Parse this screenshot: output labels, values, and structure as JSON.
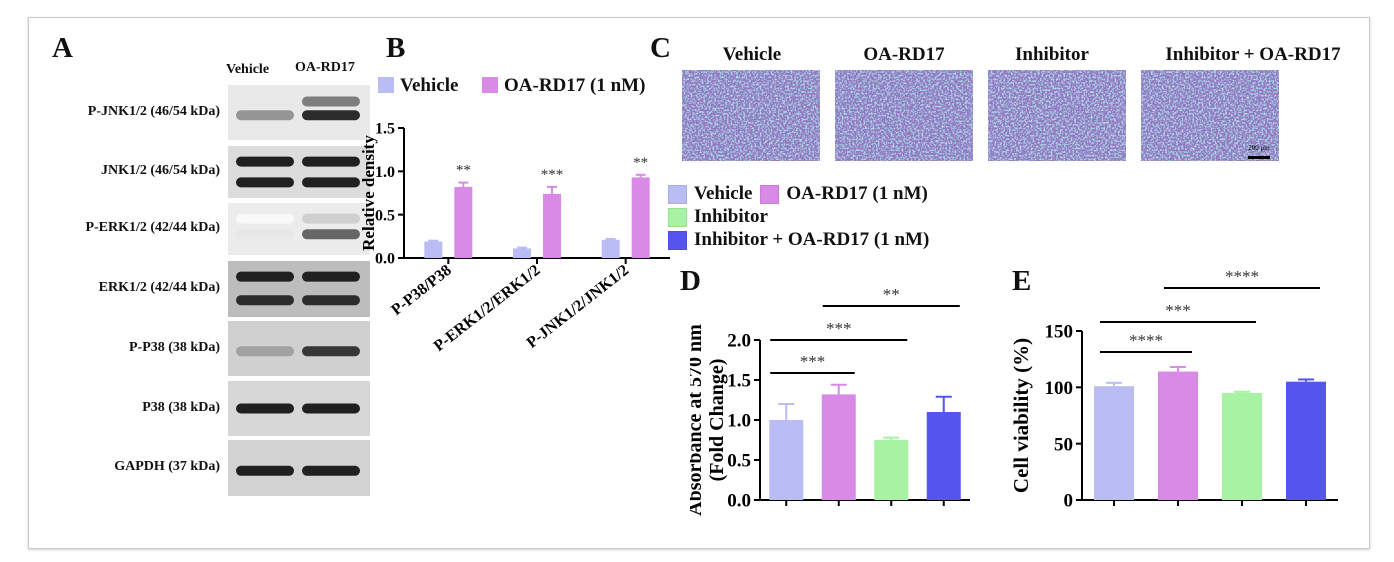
{
  "panel_labels": {
    "a": "A",
    "b": "B",
    "c": "C",
    "d": "D",
    "e": "E"
  },
  "colors": {
    "vehicle": "#b9bdf3",
    "oa": "#d98ae6",
    "inhibitor": "#a8f2a4",
    "combo": "#5555ee"
  },
  "blot": {
    "col_heads": [
      "Vehicle",
      "OA-RD17"
    ],
    "rows": [
      {
        "label": "P-JNK1/2 (46/54 kDa)"
      },
      {
        "label": "JNK1/2 (46/54 kDa)"
      },
      {
        "label": "P-ERK1/2 (42/44 kDa)"
      },
      {
        "label": "ERK1/2 (42/44 kDa)"
      },
      {
        "label": "P-P38 (38 kDa)"
      },
      {
        "label": "P38 (38 kDa)"
      },
      {
        "label": "GAPDH (37 kDa)"
      }
    ]
  },
  "micro": {
    "titles": [
      "Vehicle",
      "OA-RD17",
      "Inhibitor",
      "Inhibitor + OA-RD17"
    ],
    "scale_label": "200 μm"
  },
  "legend_c": [
    "Vehicle",
    "OA-RD17 (1 nM)",
    "Inhibitor",
    "Inhibitor + OA-RD17 (1 nM)"
  ],
  "chart_data": [
    {
      "id": "B",
      "type": "bar",
      "categories": [
        "P-P38/P38",
        "P-ERK1/2/ERK1/2",
        "P-JNK1/2/JNK1/2"
      ],
      "series": [
        {
          "name": "Vehicle",
          "values": [
            0.19,
            0.11,
            0.21
          ],
          "errors": [
            0.01,
            0.01,
            0.01
          ]
        },
        {
          "name": "OA-RD17 (1 nM)",
          "values": [
            0.82,
            0.74,
            0.93
          ],
          "errors": [
            0.05,
            0.08,
            0.03
          ]
        }
      ],
      "significance": [
        "**",
        "***",
        "**"
      ],
      "ylabel": "Relative density",
      "ylim": [
        0,
        1.5
      ],
      "yticks": [
        "0.0",
        "0.5",
        "1.0",
        "1.5"
      ],
      "legend": "top"
    },
    {
      "id": "D",
      "type": "bar",
      "categories": [
        "Vehicle",
        "OA-RD17 (1 nM)",
        "Inhibitor",
        "Inhibitor + OA-RD17 (1 nM)"
      ],
      "values": [
        1.0,
        1.32,
        0.75,
        1.1
      ],
      "errors": [
        0.2,
        0.12,
        0.03,
        0.19
      ],
      "ylabel": "Absorbance at 570 nm\n(Fold Change)",
      "ylabel_lines": [
        "Absorbance at 570 nm",
        "(Fold Change)"
      ],
      "ylim": [
        0,
        2.0
      ],
      "yticks": [
        "0.0",
        "0.5",
        "1.0",
        "1.5",
        "2.0"
      ],
      "comparisons": [
        {
          "from": 0,
          "to": 1,
          "label": "***"
        },
        {
          "from": 0,
          "to": 2,
          "label": "***"
        },
        {
          "from": 1,
          "to": 3,
          "label": "**"
        }
      ]
    },
    {
      "id": "E",
      "type": "bar",
      "categories": [
        "Vehicle",
        "OA-RD17 (1 nM)",
        "Inhibitor",
        "Inhibitor + OA-RD17 (1 nM)"
      ],
      "values": [
        101,
        114,
        95,
        105
      ],
      "errors": [
        3,
        4,
        1,
        2
      ],
      "ylabel": "Cell viability (%)",
      "ylim": [
        0,
        150
      ],
      "yticks": [
        "0",
        "50",
        "100",
        "150"
      ],
      "comparisons": [
        {
          "from": 0,
          "to": 1,
          "label": "****"
        },
        {
          "from": 0,
          "to": 2,
          "label": "***"
        },
        {
          "from": 1,
          "to": 3,
          "label": "****"
        }
      ]
    }
  ]
}
